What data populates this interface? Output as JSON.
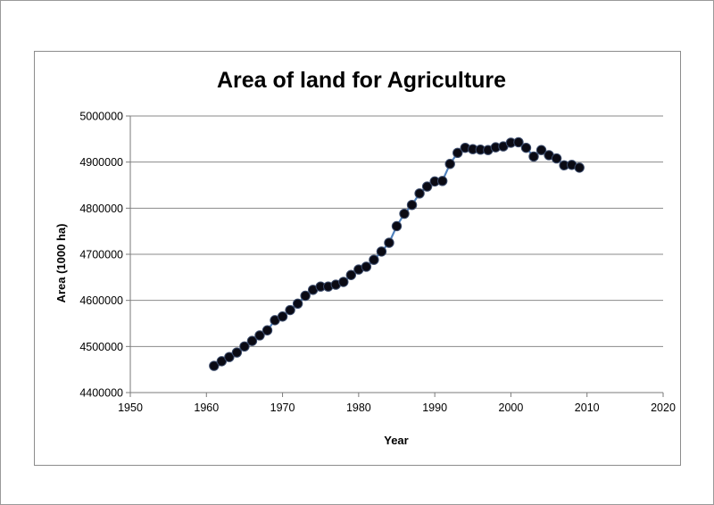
{
  "chart_data": {
    "type": "line",
    "title": "Area of land for Agriculture",
    "xlabel": "Year",
    "ylabel": "Area (1000 ha)",
    "xlim": [
      1950,
      2020
    ],
    "ylim": [
      4400000,
      5000000
    ],
    "xticks": [
      "1950",
      "1960",
      "1970",
      "1980",
      "1990",
      "2000",
      "2010",
      "2020"
    ],
    "yticks": [
      "4400000",
      "4500000",
      "4600000",
      "4700000",
      "4800000",
      "4900000",
      "5000000"
    ],
    "grid": "horizontal",
    "legend": "none",
    "series": [
      {
        "marker": "circle",
        "line_color": "#4f81bd",
        "marker_color": "#0a0a14",
        "points": [
          {
            "x": 1961,
            "y": 4458000
          },
          {
            "x": 1962,
            "y": 4468000
          },
          {
            "x": 1963,
            "y": 4477000
          },
          {
            "x": 1964,
            "y": 4487000
          },
          {
            "x": 1965,
            "y": 4500000
          },
          {
            "x": 1966,
            "y": 4512000
          },
          {
            "x": 1967,
            "y": 4524000
          },
          {
            "x": 1968,
            "y": 4535000
          },
          {
            "x": 1969,
            "y": 4557000
          },
          {
            "x": 1970,
            "y": 4565000
          },
          {
            "x": 1971,
            "y": 4579000
          },
          {
            "x": 1972,
            "y": 4593000
          },
          {
            "x": 1973,
            "y": 4610000
          },
          {
            "x": 1974,
            "y": 4623000
          },
          {
            "x": 1975,
            "y": 4630000
          },
          {
            "x": 1976,
            "y": 4630000
          },
          {
            "x": 1977,
            "y": 4634000
          },
          {
            "x": 1978,
            "y": 4640000
          },
          {
            "x": 1979,
            "y": 4655000
          },
          {
            "x": 1980,
            "y": 4667000
          },
          {
            "x": 1981,
            "y": 4673000
          },
          {
            "x": 1982,
            "y": 4688000
          },
          {
            "x": 1983,
            "y": 4706000
          },
          {
            "x": 1984,
            "y": 4725000
          },
          {
            "x": 1985,
            "y": 4761000
          },
          {
            "x": 1986,
            "y": 4788000
          },
          {
            "x": 1987,
            "y": 4807000
          },
          {
            "x": 1988,
            "y": 4832000
          },
          {
            "x": 1989,
            "y": 4847000
          },
          {
            "x": 1990,
            "y": 4858000
          },
          {
            "x": 1991,
            "y": 4859000
          },
          {
            "x": 1992,
            "y": 4896000
          },
          {
            "x": 1993,
            "y": 4920000
          },
          {
            "x": 1994,
            "y": 4931000
          },
          {
            "x": 1995,
            "y": 4928000
          },
          {
            "x": 1996,
            "y": 4927000
          },
          {
            "x": 1997,
            "y": 4926000
          },
          {
            "x": 1998,
            "y": 4932000
          },
          {
            "x": 1999,
            "y": 4934000
          },
          {
            "x": 2000,
            "y": 4942000
          },
          {
            "x": 2001,
            "y": 4943000
          },
          {
            "x": 2002,
            "y": 4931000
          },
          {
            "x": 2003,
            "y": 4912000
          },
          {
            "x": 2004,
            "y": 4926000
          },
          {
            "x": 2005,
            "y": 4915000
          },
          {
            "x": 2006,
            "y": 4908000
          },
          {
            "x": 2007,
            "y": 4893000
          },
          {
            "x": 2008,
            "y": 4894000
          },
          {
            "x": 2009,
            "y": 4888000
          }
        ]
      }
    ]
  }
}
